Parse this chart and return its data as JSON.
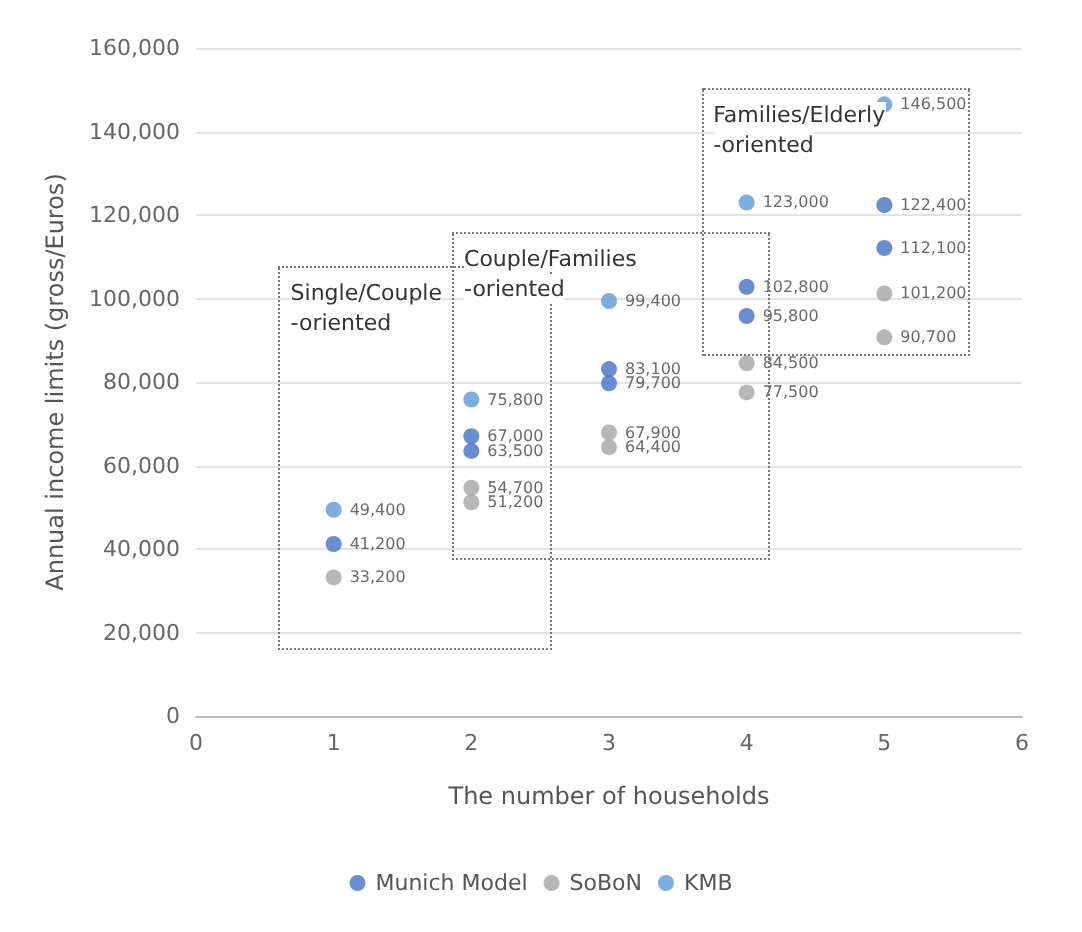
{
  "chart_data": {
    "type": "scatter",
    "xlabel": "The number of households",
    "ylabel": "Annual income limits (gross/Euros)",
    "xlim": [
      0,
      6
    ],
    "xticks": [
      0,
      1,
      2,
      3,
      4,
      5,
      6
    ],
    "ylim": [
      0,
      160000
    ],
    "yticks": [
      0,
      {
        "value": 20000,
        "label": "20,000"
      },
      {
        "value": 40000,
        "label": "40,000"
      },
      {
        "value": 60000,
        "label": "60,000"
      },
      {
        "value": 80000,
        "label": "80,000"
      },
      {
        "value": 100000,
        "label": "100,000"
      },
      {
        "value": 120000,
        "label": "120,000"
      },
      {
        "value": 140000,
        "label": "140,000"
      },
      {
        "value": 160000,
        "label": "160,000"
      }
    ],
    "grid": "y",
    "legend": "bottom",
    "marker": "circle",
    "series": [
      {
        "name": "Munich Model",
        "color": "#4472c4",
        "x": [
          1,
          2,
          2,
          3,
          3,
          4,
          4,
          5,
          5
        ],
        "values": [
          41200,
          67000,
          63500,
          83100,
          79700,
          102800,
          95800,
          122400,
          112100
        ],
        "value_labels": [
          "41,200",
          "67,000",
          "63,500",
          "83,100",
          "79,700",
          "102,800",
          "95,800",
          "122,400",
          "112,100"
        ]
      },
      {
        "name": "SoBoN",
        "color": "#a5a5a5",
        "x": [
          1,
          2,
          2,
          3,
          3,
          4,
          4,
          5,
          5
        ],
        "values": [
          33200,
          54700,
          51200,
          67900,
          64400,
          84500,
          77500,
          101200,
          90700
        ],
        "value_labels": [
          "33,200",
          "54,700",
          "51,200",
          "67,900",
          "64,400",
          "84,500",
          "77,500",
          "101,200",
          "90,700"
        ]
      },
      {
        "name": "KMB",
        "color": "#5b9bd5",
        "x": [
          1,
          2,
          3,
          4,
          5
        ],
        "values": [
          49400,
          75800,
          99400,
          123000,
          146500
        ],
        "value_labels": [
          "49,400",
          "75,800",
          "99,400",
          "123,000",
          "146,500"
        ]
      }
    ],
    "annotations": [
      "Single/Couple\n-oriented",
      "Couple/Families\n-oriented",
      "Families/Elderly\n-oriented"
    ]
  }
}
